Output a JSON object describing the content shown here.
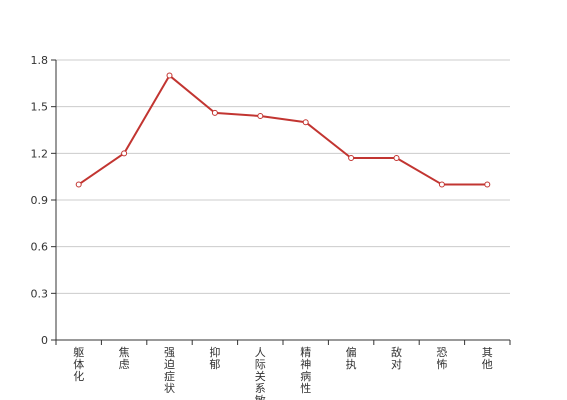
{
  "chart_data": {
    "type": "line",
    "categories": [
      "躯体化",
      "焦虑",
      "强迫症状",
      "抑郁",
      "人际关系敏感",
      "精神病性",
      "偏执",
      "敌对",
      "恐怖",
      "其他"
    ],
    "series": [
      {
        "values": [
          1.0,
          1.2,
          1.7,
          1.46,
          1.44,
          1.4,
          1.17,
          1.17,
          1.0,
          1.0
        ]
      }
    ],
    "ylim": [
      0,
      1.8
    ],
    "yticks": [
      "0",
      "0.3",
      "0.6",
      "0.9",
      "1.2",
      "1.5",
      "1.8"
    ],
    "title": "",
    "xlabel": "",
    "ylabel": "",
    "grid": "horizontal",
    "legend": "none",
    "line_color": "#c23531",
    "marker_fill": "#ffffff"
  }
}
